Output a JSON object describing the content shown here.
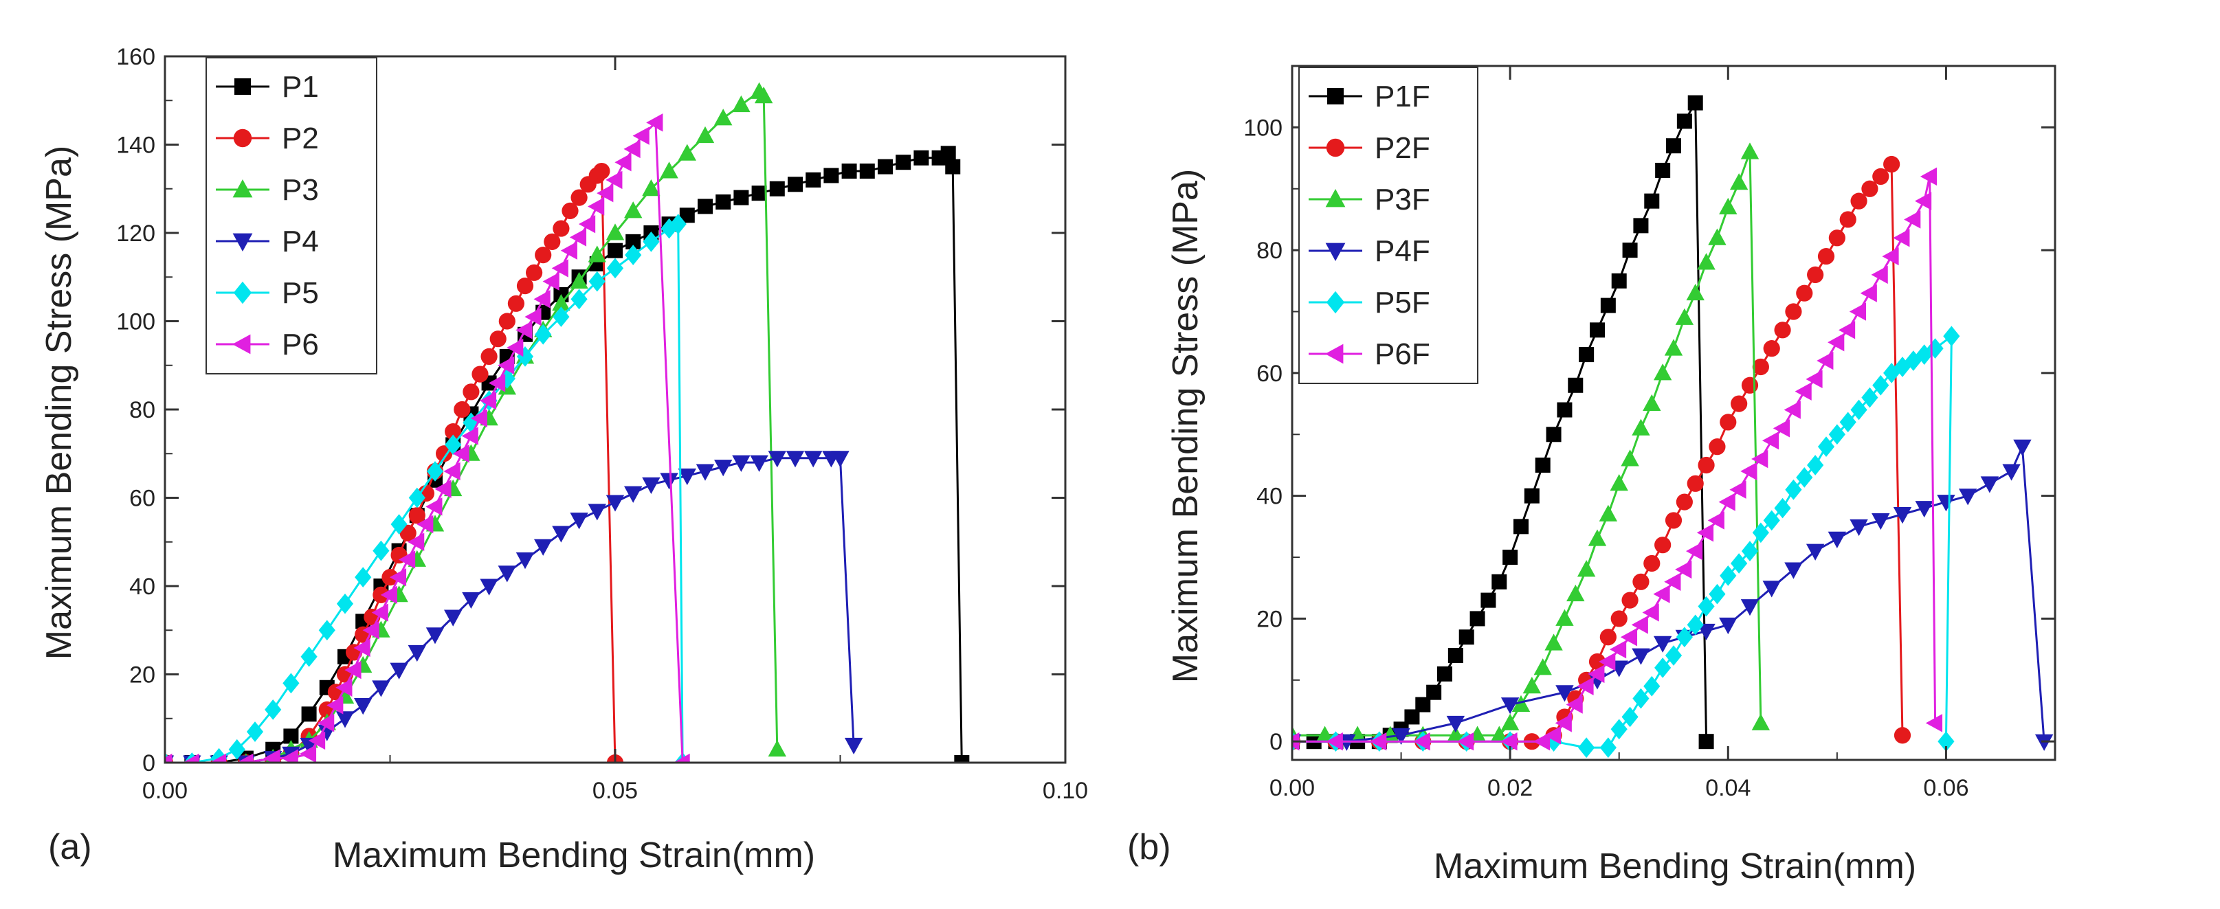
{
  "figure": {
    "panel_labels": [
      "(a)",
      "(b)"
    ]
  },
  "chart_data": [
    {
      "type": "line",
      "panel": "(a)",
      "xlabel": "Maximum Bending Strain(mm)",
      "ylabel": "Maximum Bending Stress (MPa)",
      "xlim": [
        0.0,
        0.1
      ],
      "ylim": [
        0,
        160
      ],
      "xticks": [
        0.0,
        0.05,
        0.1
      ],
      "xtick_labels": [
        "0.00",
        "0.05",
        "0.10"
      ],
      "yticks": [
        0,
        20,
        40,
        60,
        80,
        100,
        120,
        140,
        160
      ],
      "ytick_labels": [
        "0",
        "20",
        "40",
        "60",
        "80",
        "100",
        "120",
        "140",
        "160"
      ],
      "legend_position": "top-left",
      "series": [
        {
          "name": "P1",
          "color": "#000000",
          "marker": "square",
          "x": [
            0,
            0.003,
            0.006,
            0.009,
            0.012,
            0.014,
            0.016,
            0.018,
            0.02,
            0.022,
            0.024,
            0.026,
            0.028,
            0.03,
            0.032,
            0.034,
            0.036,
            0.038,
            0.04,
            0.042,
            0.044,
            0.046,
            0.048,
            0.05,
            0.052,
            0.054,
            0.056,
            0.058,
            0.06,
            0.062,
            0.064,
            0.066,
            0.068,
            0.07,
            0.072,
            0.074,
            0.076,
            0.078,
            0.08,
            0.082,
            0.084,
            0.086,
            0.087,
            0.0875,
            0.0885
          ],
          "y": [
            0,
            0,
            0,
            1,
            3,
            6,
            11,
            17,
            24,
            32,
            40,
            48,
            56,
            64,
            72,
            79,
            86,
            92,
            97,
            102,
            106,
            110,
            113,
            116,
            118,
            120,
            122,
            124,
            126,
            127,
            128,
            129,
            130,
            131,
            132,
            133,
            134,
            134,
            135,
            136,
            137,
            137,
            138,
            135,
            0
          ]
        },
        {
          "name": "P2",
          "color": "#e41a1c",
          "marker": "circle",
          "x": [
            0,
            0.003,
            0.006,
            0.009,
            0.012,
            0.014,
            0.016,
            0.018,
            0.019,
            0.02,
            0.021,
            0.022,
            0.023,
            0.024,
            0.025,
            0.026,
            0.027,
            0.028,
            0.029,
            0.03,
            0.031,
            0.032,
            0.033,
            0.034,
            0.035,
            0.036,
            0.037,
            0.038,
            0.039,
            0.04,
            0.041,
            0.042,
            0.043,
            0.044,
            0.045,
            0.046,
            0.047,
            0.048,
            0.0485,
            0.05
          ],
          "y": [
            0,
            -1,
            0,
            0,
            0,
            2,
            6,
            12,
            16,
            20,
            25,
            29,
            33,
            38,
            42,
            47,
            52,
            56,
            61,
            66,
            70,
            75,
            80,
            84,
            88,
            92,
            96,
            100,
            104,
            108,
            111,
            115,
            118,
            121,
            125,
            128,
            131,
            133,
            134,
            0
          ]
        },
        {
          "name": "P3",
          "color": "#33cc33",
          "marker": "triangle-up",
          "x": [
            0,
            0.003,
            0.006,
            0.009,
            0.012,
            0.014,
            0.016,
            0.018,
            0.02,
            0.022,
            0.024,
            0.026,
            0.028,
            0.03,
            0.032,
            0.034,
            0.036,
            0.038,
            0.04,
            0.042,
            0.044,
            0.046,
            0.048,
            0.05,
            0.052,
            0.054,
            0.056,
            0.058,
            0.06,
            0.062,
            0.064,
            0.066,
            0.0665,
            0.068
          ],
          "y": [
            0,
            0,
            0,
            0,
            1,
            3,
            5,
            9,
            15,
            22,
            30,
            38,
            46,
            54,
            62,
            70,
            78,
            85,
            92,
            98,
            104,
            109,
            115,
            120,
            125,
            130,
            134,
            138,
            142,
            146,
            149,
            152,
            151,
            3
          ]
        },
        {
          "name": "P4",
          "color": "#1f1fb4",
          "marker": "triangle-down",
          "x": [
            0,
            0.003,
            0.006,
            0.009,
            0.012,
            0.014,
            0.016,
            0.018,
            0.02,
            0.022,
            0.024,
            0.026,
            0.028,
            0.03,
            0.032,
            0.034,
            0.036,
            0.038,
            0.04,
            0.042,
            0.044,
            0.046,
            0.048,
            0.05,
            0.052,
            0.054,
            0.056,
            0.058,
            0.06,
            0.062,
            0.064,
            0.066,
            0.068,
            0.07,
            0.072,
            0.074,
            0.075,
            0.0765
          ],
          "y": [
            0,
            0,
            0,
            0,
            1,
            2,
            4,
            7,
            10,
            13,
            17,
            21,
            25,
            29,
            33,
            37,
            40,
            43,
            46,
            49,
            52,
            55,
            57,
            59,
            61,
            63,
            64,
            65,
            66,
            67,
            68,
            68,
            69,
            69,
            69,
            69,
            69,
            4
          ]
        },
        {
          "name": "P5",
          "color": "#00e5ee",
          "marker": "diamond",
          "x": [
            0,
            0.003,
            0.006,
            0.008,
            0.01,
            0.012,
            0.014,
            0.016,
            0.018,
            0.02,
            0.022,
            0.024,
            0.026,
            0.028,
            0.03,
            0.032,
            0.034,
            0.036,
            0.038,
            0.04,
            0.042,
            0.044,
            0.046,
            0.048,
            0.05,
            0.052,
            0.054,
            0.056,
            0.057,
            0.0575
          ],
          "y": [
            0,
            0,
            1,
            3,
            7,
            12,
            18,
            24,
            30,
            36,
            42,
            48,
            54,
            60,
            66,
            72,
            77,
            82,
            87,
            92,
            97,
            101,
            105,
            109,
            112,
            115,
            118,
            121,
            122,
            0
          ]
        },
        {
          "name": "P6",
          "color": "#e020e0",
          "marker": "triangle-left",
          "x": [
            0,
            0.003,
            0.006,
            0.009,
            0.012,
            0.014,
            0.016,
            0.017,
            0.018,
            0.019,
            0.02,
            0.021,
            0.022,
            0.023,
            0.024,
            0.025,
            0.026,
            0.027,
            0.028,
            0.029,
            0.03,
            0.031,
            0.032,
            0.033,
            0.034,
            0.035,
            0.036,
            0.037,
            0.038,
            0.039,
            0.04,
            0.041,
            0.042,
            0.043,
            0.044,
            0.045,
            0.046,
            0.047,
            0.048,
            0.049,
            0.05,
            0.051,
            0.052,
            0.053,
            0.0545,
            0.0575
          ],
          "y": [
            0,
            0,
            0,
            0,
            1,
            1,
            2,
            5,
            9,
            13,
            17,
            21,
            26,
            30,
            34,
            38,
            42,
            46,
            50,
            54,
            58,
            62,
            66,
            70,
            74,
            78,
            82,
            86,
            90,
            94,
            98,
            101,
            105,
            109,
            112,
            116,
            119,
            122,
            126,
            129,
            132,
            136,
            139,
            142,
            145,
            0
          ]
        }
      ]
    },
    {
      "type": "line",
      "panel": "(b)",
      "xlabel": "Maximum Bending Strain(mm)",
      "ylabel": "Maximum Bending Stress (MPa)",
      "xlim": [
        0.0,
        0.07
      ],
      "ylim": [
        -3,
        110
      ],
      "xticks": [
        0.0,
        0.02,
        0.04,
        0.06
      ],
      "xtick_labels": [
        "0.00",
        "0.02",
        "0.04",
        "0.06"
      ],
      "yticks": [
        0,
        20,
        40,
        60,
        80,
        100
      ],
      "ytick_labels": [
        "0",
        "20",
        "40",
        "60",
        "80",
        "100"
      ],
      "legend_position": "top-left",
      "series": [
        {
          "name": "P1F",
          "color": "#000000",
          "marker": "square",
          "x": [
            0,
            0.002,
            0.004,
            0.006,
            0.008,
            0.009,
            0.01,
            0.011,
            0.012,
            0.013,
            0.014,
            0.015,
            0.016,
            0.017,
            0.018,
            0.019,
            0.02,
            0.021,
            0.022,
            0.023,
            0.024,
            0.025,
            0.026,
            0.027,
            0.028,
            0.029,
            0.03,
            0.031,
            0.032,
            0.033,
            0.034,
            0.035,
            0.036,
            0.037,
            0.038
          ],
          "y": [
            0,
            0,
            0,
            0,
            0,
            1,
            2,
            4,
            6,
            8,
            11,
            14,
            17,
            20,
            23,
            26,
            30,
            35,
            40,
            45,
            50,
            54,
            58,
            63,
            67,
            71,
            75,
            80,
            84,
            88,
            93,
            97,
            101,
            104,
            0
          ]
        },
        {
          "name": "P2F",
          "color": "#e41a1c",
          "marker": "circle",
          "x": [
            0,
            0.004,
            0.008,
            0.012,
            0.016,
            0.02,
            0.022,
            0.024,
            0.025,
            0.026,
            0.027,
            0.028,
            0.029,
            0.03,
            0.031,
            0.032,
            0.033,
            0.034,
            0.035,
            0.036,
            0.037,
            0.038,
            0.039,
            0.04,
            0.041,
            0.042,
            0.043,
            0.044,
            0.045,
            0.046,
            0.047,
            0.048,
            0.049,
            0.05,
            0.051,
            0.052,
            0.053,
            0.054,
            0.055,
            0.056
          ],
          "y": [
            0,
            0,
            0,
            0,
            0,
            0,
            0,
            1,
            4,
            7,
            10,
            13,
            17,
            20,
            23,
            26,
            29,
            32,
            36,
            39,
            42,
            45,
            48,
            52,
            55,
            58,
            61,
            64,
            67,
            70,
            73,
            76,
            79,
            82,
            85,
            88,
            90,
            92,
            94,
            1
          ]
        },
        {
          "name": "P3F",
          "color": "#33cc33",
          "marker": "triangle-up",
          "x": [
            0,
            0.003,
            0.006,
            0.009,
            0.012,
            0.015,
            0.017,
            0.019,
            0.02,
            0.021,
            0.022,
            0.023,
            0.024,
            0.025,
            0.026,
            0.027,
            0.028,
            0.029,
            0.03,
            0.031,
            0.032,
            0.033,
            0.034,
            0.035,
            0.036,
            0.037,
            0.038,
            0.039,
            0.04,
            0.041,
            0.042,
            0.043
          ],
          "y": [
            1,
            1,
            1,
            1,
            1,
            1,
            1,
            1,
            3,
            6,
            9,
            12,
            16,
            20,
            24,
            28,
            33,
            37,
            42,
            46,
            51,
            55,
            60,
            64,
            69,
            73,
            78,
            82,
            87,
            91,
            96,
            3
          ]
        },
        {
          "name": "P4F",
          "color": "#1f1fb4",
          "marker": "triangle-down",
          "x": [
            0,
            0.005,
            0.01,
            0.015,
            0.02,
            0.025,
            0.028,
            0.03,
            0.032,
            0.034,
            0.036,
            0.038,
            0.04,
            0.042,
            0.044,
            0.046,
            0.048,
            0.05,
            0.052,
            0.054,
            0.056,
            0.058,
            0.06,
            0.062,
            0.064,
            0.066,
            0.067,
            0.069
          ],
          "y": [
            0,
            0,
            1,
            3,
            6,
            8,
            10,
            12,
            14,
            16,
            17,
            18,
            19,
            22,
            25,
            28,
            31,
            33,
            35,
            36,
            37,
            38,
            39,
            40,
            42,
            44,
            48,
            0
          ]
        },
        {
          "name": "P5F",
          "color": "#00e5ee",
          "marker": "diamond",
          "x": [
            0,
            0.004,
            0.008,
            0.012,
            0.016,
            0.02,
            0.024,
            0.027,
            0.029,
            0.03,
            0.031,
            0.032,
            0.033,
            0.034,
            0.035,
            0.036,
            0.037,
            0.038,
            0.039,
            0.04,
            0.041,
            0.042,
            0.043,
            0.044,
            0.045,
            0.046,
            0.047,
            0.048,
            0.049,
            0.05,
            0.051,
            0.052,
            0.053,
            0.054,
            0.055,
            0.056,
            0.057,
            0.058,
            0.059,
            0.0605,
            0.06
          ],
          "y": [
            0,
            0,
            0,
            0,
            0,
            0,
            0,
            -1,
            -1,
            2,
            4,
            7,
            9,
            12,
            14,
            17,
            19,
            22,
            24,
            27,
            29,
            31,
            34,
            36,
            38,
            41,
            43,
            45,
            48,
            50,
            52,
            54,
            56,
            58,
            60,
            61,
            62,
            63,
            64,
            66,
            0
          ]
        },
        {
          "name": "P6F",
          "color": "#e020e0",
          "marker": "triangle-left",
          "x": [
            0,
            0.004,
            0.008,
            0.012,
            0.016,
            0.02,
            0.023,
            0.024,
            0.025,
            0.026,
            0.027,
            0.028,
            0.029,
            0.03,
            0.031,
            0.032,
            0.033,
            0.034,
            0.035,
            0.036,
            0.037,
            0.038,
            0.039,
            0.04,
            0.041,
            0.042,
            0.043,
            0.044,
            0.045,
            0.046,
            0.047,
            0.048,
            0.049,
            0.05,
            0.051,
            0.052,
            0.053,
            0.054,
            0.055,
            0.056,
            0.057,
            0.058,
            0.0585,
            0.059
          ],
          "y": [
            0,
            0,
            0,
            0,
            0,
            0,
            0,
            1,
            3,
            6,
            9,
            11,
            13,
            15,
            17,
            19,
            21,
            24,
            26,
            28,
            31,
            34,
            36,
            39,
            41,
            44,
            46,
            49,
            51,
            54,
            57,
            59,
            62,
            65,
            67,
            70,
            73,
            76,
            79,
            82,
            85,
            88,
            92,
            3
          ]
        }
      ]
    }
  ]
}
